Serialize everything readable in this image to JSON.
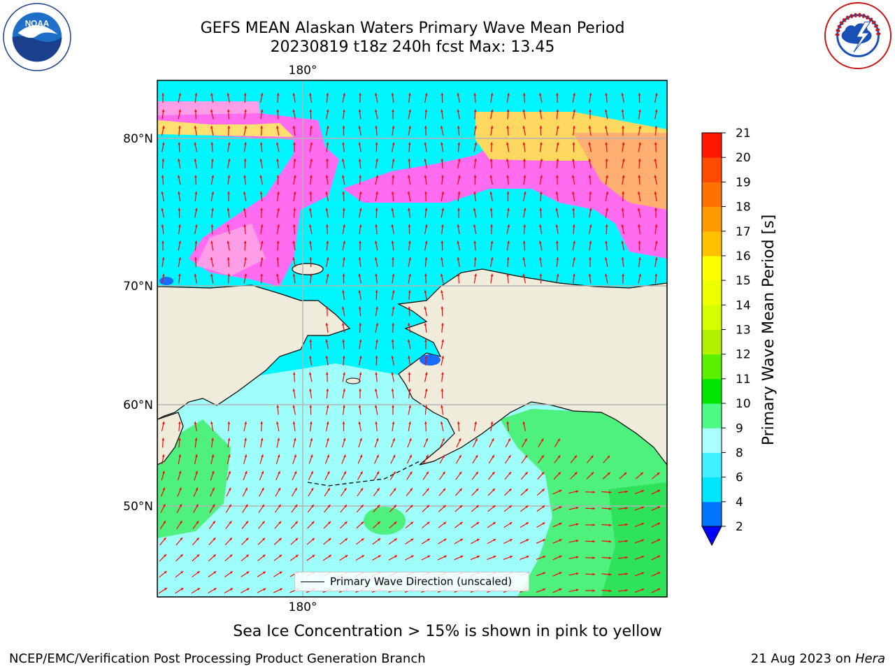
{
  "header": {
    "title_line1": "GEFS MEAN Alaskan Waters Primary Wave Mean Period",
    "title_line2": "20230819 t18z 240h fcst   Max: 13.45"
  },
  "logos": {
    "left": "NOAA",
    "right": "NATIONAL WEATHER SERVICE"
  },
  "map": {
    "top_lon_label": "180°",
    "bottom_lon_label": "180°",
    "lat_labels": [
      "80°N",
      "70°N",
      "60°N",
      "50°N"
    ],
    "land_color": "#efecdc",
    "arrow_color": "#ff0000",
    "legend_label": "Primary Wave Direction (unscaled)"
  },
  "colorbar": {
    "label": "Primary Wave Mean Period [s]",
    "ticks": [
      "2",
      "4",
      "6",
      "8",
      "9",
      "10",
      "11",
      "12",
      "13",
      "14",
      "15",
      "16",
      "17",
      "18",
      "19",
      "20",
      "21"
    ],
    "colors": [
      "#0076ff",
      "#00e6ff",
      "#40f0ff",
      "#a8fffe",
      "#4cfc86",
      "#00e600",
      "#5af000",
      "#b0f000",
      "#d4ff00",
      "#eeff00",
      "#ffff00",
      "#ffc000",
      "#ff9a00",
      "#ff7200",
      "#ff4a00",
      "#ff1800"
    ],
    "under_color": "#0000ff"
  },
  "caption": "Sea Ice Concentration > 15% is shown in pink to yellow",
  "footer": {
    "left": "NCEP/EMC/Verification Post Processing Product Generation Branch",
    "right_date": "21 Aug 2023 on ",
    "right_machine": "Hera"
  }
}
